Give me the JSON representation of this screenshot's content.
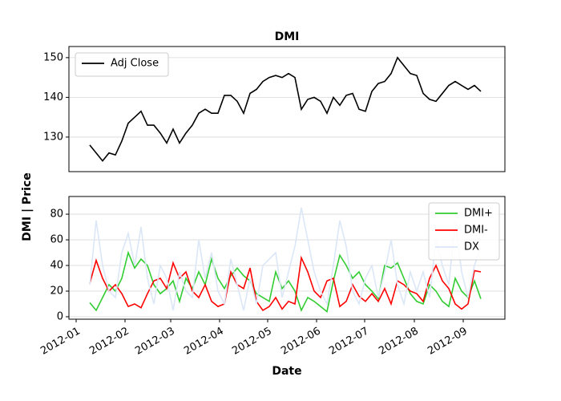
{
  "chart_data": [
    {
      "type": "line",
      "title": "DMI",
      "ylabel": "DMI | Price",
      "xlim": [
        -3.25,
        64.75
      ],
      "ylim": [
        121.3,
        152.8
      ],
      "yticks": [
        130,
        140,
        150
      ],
      "grid": true,
      "legend": "upper left",
      "series": [
        {
          "name": "Adj Close",
          "color": "#000000",
          "values": [
            128,
            126,
            124,
            126,
            125.5,
            129,
            133.5,
            135,
            136.5,
            133,
            133,
            131,
            128.5,
            132,
            128.5,
            131,
            133,
            136,
            137,
            136,
            136,
            140.5,
            140.5,
            139,
            136,
            141,
            142,
            144,
            145,
            145.5,
            145,
            146,
            145,
            137,
            139.5,
            140,
            139,
            136,
            140,
            138,
            140.5,
            141,
            137,
            136.5,
            141.5,
            143.5,
            144,
            146,
            150,
            148,
            146,
            145.5,
            141,
            139.5,
            139,
            141,
            143,
            144,
            143,
            142,
            143,
            141.5
          ]
        }
      ]
    },
    {
      "type": "line",
      "xlabel": "Date",
      "xlim": [
        -3.25,
        64.75
      ],
      "xticks": [
        {
          "value": -2.125,
          "label": "2012-01"
        },
        {
          "value": 5.5,
          "label": "2012-02"
        },
        {
          "value": 12.625,
          "label": "2012-03"
        },
        {
          "value": 20.25,
          "label": "2012-04"
        },
        {
          "value": 27.75,
          "label": "2012-05"
        },
        {
          "value": 35.375,
          "label": "2012-06"
        },
        {
          "value": 42.875,
          "label": "2012-07"
        },
        {
          "value": 50.625,
          "label": "2012-08"
        },
        {
          "value": 58.25,
          "label": "2012-09"
        }
      ],
      "ylim": [
        -1.9,
        93.8
      ],
      "yticks": [
        0,
        20,
        40,
        60,
        80
      ],
      "grid": true,
      "legend": "upper right",
      "series": [
        {
          "name": "DMI+",
          "color": "#32cd32",
          "values": [
            11,
            5,
            15,
            25,
            20,
            30,
            50,
            38,
            45,
            40,
            25,
            18,
            22,
            28,
            12,
            30,
            22,
            35,
            25,
            45,
            30,
            22,
            32,
            38,
            32,
            28,
            18,
            15,
            12,
            35,
            22,
            28,
            20,
            5,
            15,
            12,
            8,
            4,
            28,
            48,
            40,
            30,
            35,
            25,
            20,
            14,
            40,
            38,
            42,
            30,
            18,
            12,
            10,
            25,
            20,
            12,
            8,
            30,
            20,
            15,
            28,
            14
          ]
        },
        {
          "name": "DMI-",
          "color": "#ff0000",
          "values": [
            26,
            44,
            30,
            20,
            25,
            18,
            8,
            10,
            7,
            18,
            28,
            30,
            22,
            42,
            30,
            35,
            20,
            15,
            25,
            12,
            8,
            10,
            35,
            25,
            22,
            38,
            12,
            5,
            8,
            15,
            6,
            12,
            10,
            46,
            35,
            20,
            15,
            28,
            30,
            8,
            12,
            25,
            16,
            12,
            18,
            12,
            22,
            10,
            28,
            25,
            20,
            18,
            12,
            30,
            40,
            28,
            22,
            10,
            6,
            10,
            36,
            35
          ]
        },
        {
          "name": "DX",
          "color": "#dbe6f7",
          "values": [
            25,
            75,
            40,
            20,
            15,
            50,
            65,
            40,
            70,
            30,
            10,
            40,
            30,
            5,
            35,
            20,
            15,
            60,
            30,
            50,
            20,
            10,
            45,
            25,
            5,
            30,
            10,
            40,
            45,
            50,
            15,
            35,
            55,
            85,
            60,
            35,
            20,
            10,
            40,
            75,
            55,
            20,
            10,
            30,
            40,
            15,
            35,
            60,
            25,
            10,
            35,
            20,
            35,
            15,
            60,
            40,
            25,
            75,
            35,
            15,
            40,
            55
          ]
        }
      ]
    }
  ]
}
